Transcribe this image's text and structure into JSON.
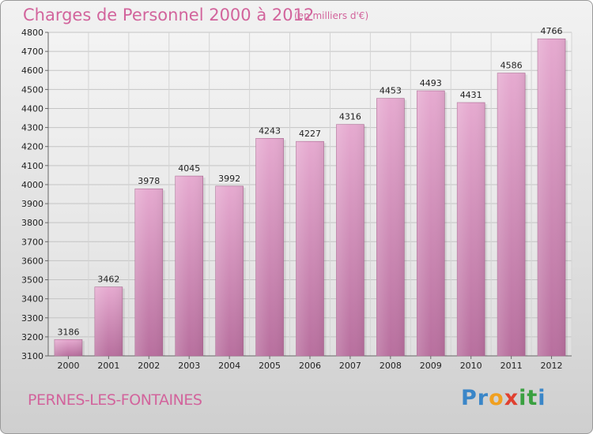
{
  "header": {
    "title": "Charges de Personnel 2000 à 2012",
    "subtitle": "(en milliers d'€)"
  },
  "footer": {
    "commune": "PERNES-LES-FONTAINES",
    "logo": "Proxiti"
  },
  "colors": {
    "accent": "#d2649c",
    "bar": "#cc7aac",
    "bar_light": "#e6aad0",
    "bar_dark": "#b86f9e"
  },
  "chart_data": {
    "type": "bar",
    "title": "Charges de Personnel 2000 à 2012",
    "subtitle": "(en milliers d'€)",
    "xlabel": "",
    "ylabel": "",
    "categories": [
      "2000",
      "2001",
      "2002",
      "2003",
      "2004",
      "2005",
      "2006",
      "2007",
      "2008",
      "2009",
      "2010",
      "2011",
      "2012"
    ],
    "values": [
      3186,
      3462,
      3978,
      4045,
      3992,
      4243,
      4227,
      4316,
      4453,
      4493,
      4431,
      4586,
      4766
    ],
    "ylim": [
      3100,
      4800
    ],
    "yticks": [
      3100,
      3200,
      3300,
      3400,
      3500,
      3600,
      3700,
      3800,
      3900,
      4000,
      4100,
      4200,
      4300,
      4400,
      4500,
      4600,
      4700,
      4800
    ],
    "grid": true,
    "data_labels": true
  }
}
